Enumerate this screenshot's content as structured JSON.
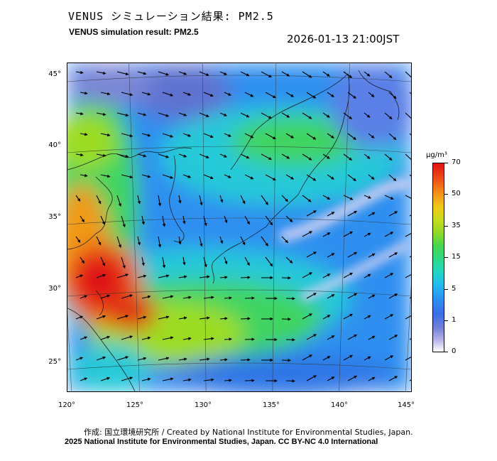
{
  "header": {
    "title_jp": "VENUS シミュレーション結果: PM2.5",
    "title_en": "VENUS simulation result: PM2.5",
    "timestamp": "2026-01-13 21:00JST"
  },
  "map": {
    "latitude_labels": [
      "45°",
      "40°",
      "35°",
      "30°",
      "25°"
    ],
    "longitude_labels": [
      "120°",
      "125°",
      "130°",
      "135°",
      "140°",
      "145°"
    ],
    "latitude_values": [
      45,
      40,
      35,
      30,
      25
    ],
    "longitude_values": [
      120,
      125,
      130,
      135,
      140,
      145
    ],
    "lon_range": [
      120,
      145
    ],
    "lat_range": [
      23,
      46
    ],
    "wind_arrows": "shown",
    "colors": {
      "very_low": "#7b86d6",
      "low": "#2e8ff0",
      "mid": "#26c9d8",
      "moderate": "#3fd462",
      "high": "#9bdc24",
      "very_high": "#ef6818",
      "extreme": "#e01414"
    }
  },
  "colorbar": {
    "unit": "μg/m³",
    "ticks": [
      "70",
      "50",
      "35",
      "15",
      "5",
      "1",
      "0"
    ]
  },
  "footer": {
    "credit": "作成: 国立環境研究所 / Created by National Institute for Environmental Studies, Japan.",
    "copyright": "2025 National Institute for Environmental Studies, Japan. CC BY-NC 4.0 International"
  }
}
